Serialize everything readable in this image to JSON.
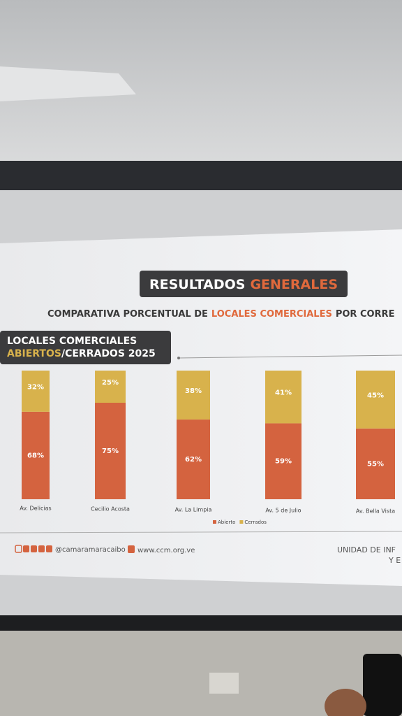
{
  "slide": {
    "title": [
      "RESULTADOS",
      "GENERALES"
    ],
    "subtitle": [
      "COMPARATIVA PORCENTUAL DE",
      "LOCALES COMERCIALES",
      "POR CORRE"
    ],
    "panel": {
      "line1": "LOCALES COMERCIALES",
      "line2": [
        "ABIERTOS",
        "/CERRADOS 2025"
      ]
    },
    "footer": {
      "social": "@camaramaracaibo",
      "web": "www.ccm.org.ve",
      "unit": [
        "UNIDAD DE INF",
        "Y E"
      ]
    }
  },
  "chart_data": {
    "type": "stacked-bar",
    "categories": [
      "Av. Delicias",
      "Cecilio Acosta",
      "Av. La Limpia",
      "Av. 5 de Julio",
      "Av. Bella Vista"
    ],
    "series": [
      {
        "name": "Abierto",
        "color": "#d4633f",
        "values": [
          68,
          75,
          62,
          59,
          55
        ],
        "value_labels": [
          "68%",
          "75%",
          "62%",
          "59%",
          "55%"
        ]
      },
      {
        "name": "Cerrados",
        "color": "#d8b24c",
        "values": [
          32,
          25,
          38,
          41,
          45
        ],
        "value_labels": [
          "32%",
          "25%",
          "38%",
          "41%",
          "45%"
        ]
      }
    ],
    "legend": "bottom"
  }
}
